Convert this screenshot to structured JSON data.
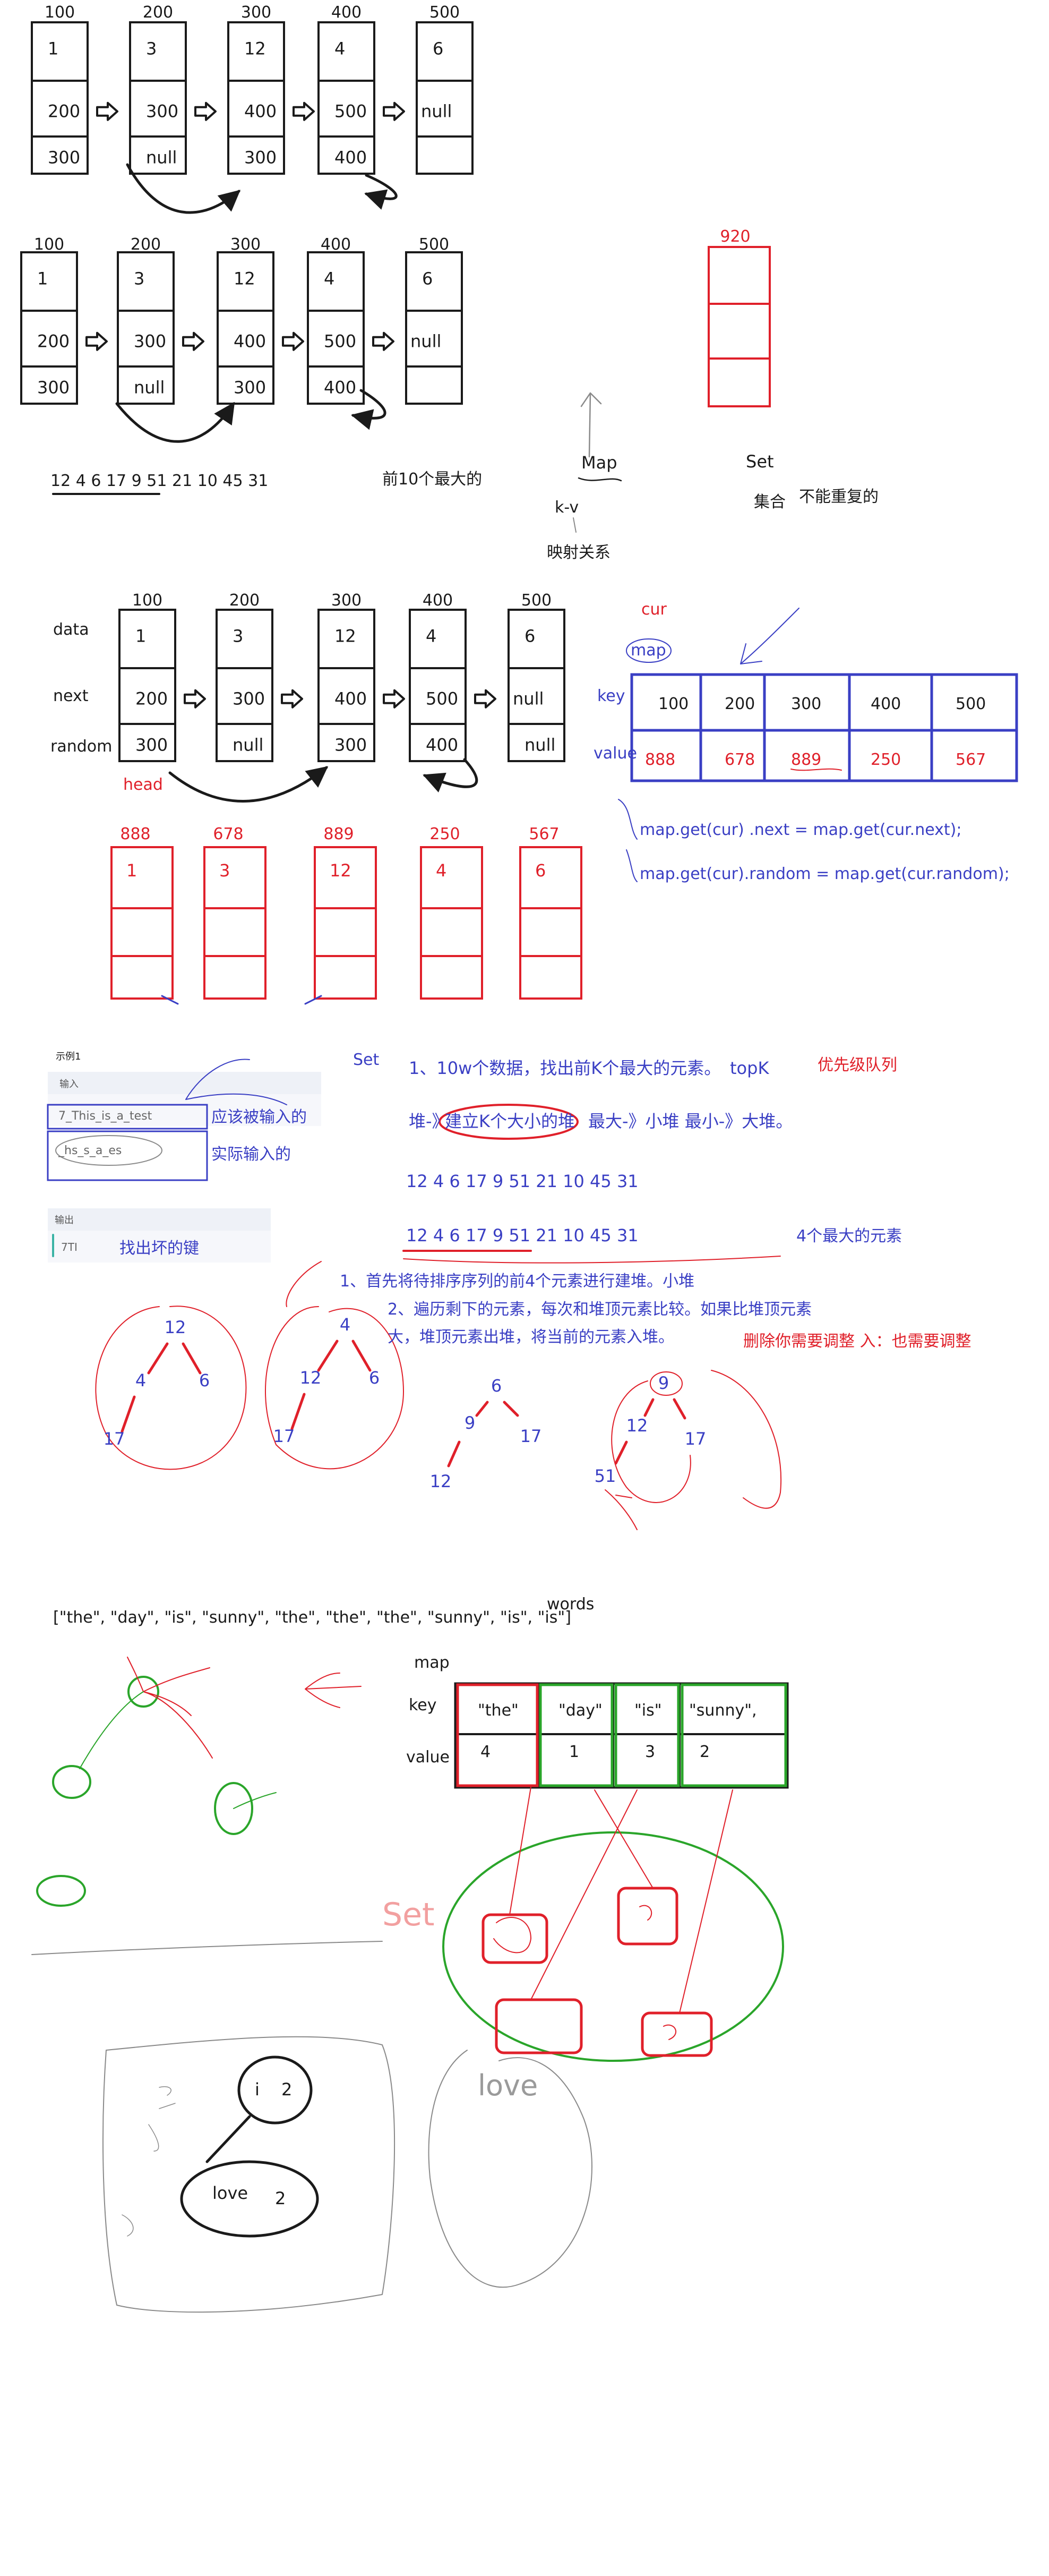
{
  "section1": {
    "addresses": [
      "100",
      "200",
      "300",
      "400",
      "500"
    ],
    "nodes": [
      {
        "val": "1",
        "next": "200",
        "random": "300"
      },
      {
        "val": "3",
        "next": "300",
        "random": "null"
      },
      {
        "val": "12",
        "next": "400",
        "random": "300"
      },
      {
        "val": "4",
        "next": "500",
        "random": "400"
      },
      {
        "val": "6",
        "next": "null",
        "random": ""
      }
    ]
  },
  "section2": {
    "addresses": [
      "100",
      "200",
      "300",
      "400",
      "500"
    ],
    "nodes": [
      {
        "val": "1",
        "next": "200",
        "random": "300"
      },
      {
        "val": "3",
        "next": "300",
        "random": "null"
      },
      {
        "val": "12",
        "next": "400",
        "random": "300"
      },
      {
        "val": "4",
        "next": "500",
        "random": "400"
      },
      {
        "val": "6",
        "next": "null",
        "random": ""
      }
    ],
    "red_address": "920",
    "sequence": "12   4   6   17   9    51   21    10   45    31",
    "sequence_note": "前10个最大的",
    "map_label": "Map",
    "kv_label": "k-v",
    "mapping_label": "映射关系",
    "set_label": "Set",
    "set_cn": "集合",
    "set_note": "不能重复的"
  },
  "section3": {
    "row_labels": [
      "data",
      "next",
      "random"
    ],
    "addresses": [
      "100",
      "200",
      "300",
      "400",
      "500"
    ],
    "nodes": [
      {
        "val": "1",
        "next": "200",
        "random": "300"
      },
      {
        "val": "3",
        "next": "300",
        "random": "null"
      },
      {
        "val": "12",
        "next": "400",
        "random": "300"
      },
      {
        "val": "4",
        "next": "500",
        "random": "400"
      },
      {
        "val": "6",
        "next": "null",
        "random": "null"
      }
    ],
    "head_label": "head",
    "cur_label": "cur",
    "map_label": "map",
    "key_label": "key",
    "value_label": "value",
    "map_keys": [
      "100",
      "200",
      "300",
      "400",
      "500"
    ],
    "map_values": [
      "888",
      "678",
      "889",
      "250",
      "567"
    ],
    "copy_addresses": [
      "888",
      "678",
      "889",
      "250",
      "567"
    ],
    "copy_vals": [
      "1",
      "3",
      "12",
      "4",
      "6"
    ],
    "code_line1": "map.get(cur) .next = map.get(cur.next);",
    "code_line2": "map.get(cur).random = map.get(cur.random);"
  },
  "section4": {
    "example_title": "示例1",
    "input_label": "输入",
    "input_value1": "7_This_is_a_test",
    "input_value2": "_hs_s_a_es",
    "output_label": "输出",
    "output_value": "7TI",
    "expected_note": "应该被输入的",
    "actual_note": "实际输入的",
    "broken_keys": "找出坏的键",
    "set_label": "Set",
    "line1": "1、10w个数据，找出前K个最大的元素。",
    "topk": "topK",
    "priority_queue": "优先级队列",
    "line2_a": "堆-》",
    "line2_circled": "建立K个大小的堆",
    "line2_b": "最大-》小堆   最小-》大堆。",
    "seq1": "12    4    6    17    9     51     21     10     45     31",
    "seq2": "12    4    6    17    9     51     21     10     45     31",
    "seq2_note": "4个最大的元素",
    "step1": "1、首先将待排序序列的前4个元素进行建堆。小堆",
    "step2a": "2、遍历剩下的元素，每次和堆顶元素比较。如果比堆顶元素",
    "step2b": "大，堆顶元素出堆，将当前的元素入堆。",
    "red_note": "删除你需要调整   入：也需要调整",
    "tree1": [
      "12",
      "4",
      "6",
      "17"
    ],
    "tree2": [
      "4",
      "12",
      "6",
      "17"
    ],
    "tree3": [
      "6",
      "9",
      "17",
      "12"
    ],
    "tree4": [
      "9",
      "12",
      "17",
      "51"
    ]
  },
  "section5": {
    "words": "[\"the\", \"day\", \"is\", \"sunny\", \"the\", \"the\", \"the\", \"sunny\", \"is\", \"is\"]",
    "words_label": "words",
    "map_label": "map",
    "key_label": "key",
    "value_label": "value",
    "keys": [
      "\"the\"",
      "\"day\"",
      "\"is\"",
      "\"sunny\","
    ],
    "values": [
      "4",
      "1",
      "3",
      "2"
    ],
    "set_handwritten": "Set"
  },
  "section6": {
    "node_i": "i",
    "node_i_count": "2",
    "node_love": "love",
    "node_love_count": "2",
    "scribble_right": "love"
  },
  "colors": {
    "black": "#1a1a1a",
    "blue": "#3a3fc4",
    "red": "#e0202a",
    "green": "#2aa52a",
    "gray": "#8a8a8a"
  }
}
